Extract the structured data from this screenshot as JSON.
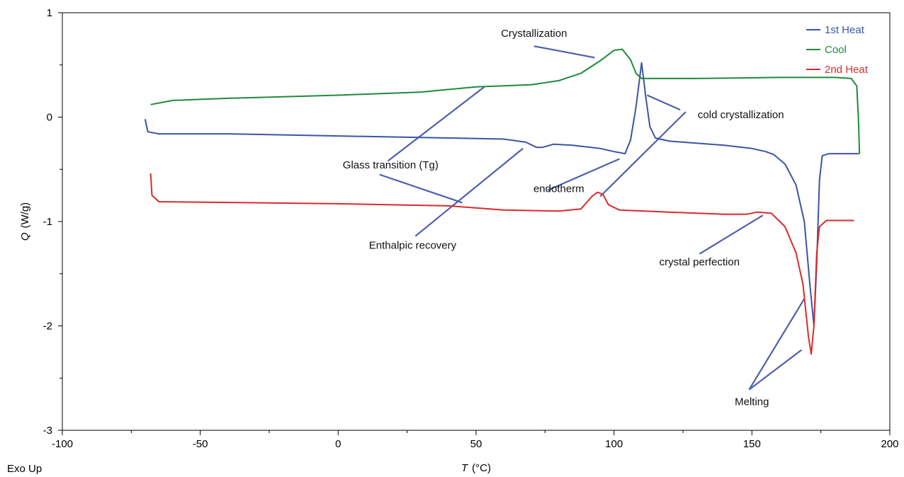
{
  "chart_data": {
    "type": "line",
    "xlabel_symbol": "T",
    "xlabel_unit": "(°C)",
    "ylabel_symbol": "Q",
    "ylabel_unit": "(W/g)",
    "xlim": [
      -100,
      200
    ],
    "ylim": [
      -3,
      1
    ],
    "x_ticks": [
      -100,
      -50,
      0,
      50,
      100,
      150,
      200
    ],
    "y_ticks": [
      -3,
      -2,
      -1,
      0,
      1
    ],
    "grid": false,
    "legend_position": "top-right",
    "corner_note": "Exo Up",
    "series": [
      {
        "name": "1st Heat",
        "color": "#3a55a4",
        "points": [
          [
            -70,
            -0.02
          ],
          [
            -69,
            -0.14
          ],
          [
            -65,
            -0.16
          ],
          [
            -40,
            -0.16
          ],
          [
            0,
            -0.18
          ],
          [
            40,
            -0.2
          ],
          [
            60,
            -0.21
          ],
          [
            68,
            -0.24
          ],
          [
            72,
            -0.29
          ],
          [
            74,
            -0.29
          ],
          [
            78,
            -0.26
          ],
          [
            85,
            -0.27
          ],
          [
            95,
            -0.3
          ],
          [
            100,
            -0.33
          ],
          [
            104,
            -0.35
          ],
          [
            106,
            -0.22
          ],
          [
            108,
            0.1
          ],
          [
            110,
            0.52
          ],
          [
            111.5,
            0.2
          ],
          [
            113,
            -0.09
          ],
          [
            115,
            -0.2
          ],
          [
            120,
            -0.23
          ],
          [
            140,
            -0.27
          ],
          [
            150,
            -0.3
          ],
          [
            155,
            -0.33
          ],
          [
            158,
            -0.36
          ],
          [
            162,
            -0.45
          ],
          [
            166,
            -0.65
          ],
          [
            169,
            -1.0
          ],
          [
            171,
            -1.6
          ],
          [
            172.5,
            -2.0
          ],
          [
            173.5,
            -1.4
          ],
          [
            174.5,
            -0.6
          ],
          [
            175.5,
            -0.37
          ],
          [
            178,
            -0.35
          ],
          [
            189,
            -0.35
          ]
        ]
      },
      {
        "name": "Cool",
        "color": "#1f8a3b",
        "points": [
          [
            -68,
            0.12
          ],
          [
            -60,
            0.16
          ],
          [
            -40,
            0.18
          ],
          [
            0,
            0.21
          ],
          [
            30,
            0.24
          ],
          [
            50,
            0.29
          ],
          [
            70,
            0.31
          ],
          [
            80,
            0.35
          ],
          [
            88,
            0.42
          ],
          [
            95,
            0.54
          ],
          [
            100,
            0.64
          ],
          [
            103,
            0.65
          ],
          [
            106,
            0.55
          ],
          [
            108,
            0.42
          ],
          [
            110,
            0.37
          ],
          [
            130,
            0.37
          ],
          [
            160,
            0.38
          ],
          [
            180,
            0.38
          ],
          [
            186,
            0.37
          ],
          [
            188,
            0.3
          ],
          [
            188.6,
            0.0
          ],
          [
            189,
            -0.35
          ]
        ]
      },
      {
        "name": "2nd Heat",
        "color": "#d92b2b",
        "points": [
          [
            -68,
            -0.54
          ],
          [
            -67.5,
            -0.75
          ],
          [
            -65,
            -0.81
          ],
          [
            0,
            -0.83
          ],
          [
            40,
            -0.85
          ],
          [
            60,
            -0.89
          ],
          [
            80,
            -0.9
          ],
          [
            88,
            -0.88
          ],
          [
            92,
            -0.76
          ],
          [
            94,
            -0.72
          ],
          [
            96,
            -0.74
          ],
          [
            98,
            -0.84
          ],
          [
            102,
            -0.89
          ],
          [
            120,
            -0.91
          ],
          [
            140,
            -0.93
          ],
          [
            148,
            -0.93
          ],
          [
            152,
            -0.91
          ],
          [
            157,
            -0.92
          ],
          [
            162,
            -1.05
          ],
          [
            166,
            -1.3
          ],
          [
            168.5,
            -1.6
          ],
          [
            170.5,
            -2.1
          ],
          [
            171.5,
            -2.27
          ],
          [
            172.5,
            -2.0
          ],
          [
            173.5,
            -1.3
          ],
          [
            174.5,
            -1.05
          ],
          [
            177,
            -0.99
          ],
          [
            187,
            -0.99
          ]
        ]
      }
    ],
    "annotations": [
      {
        "text": "Crystallization",
        "text_at": [
          71,
          0.77
        ],
        "anchor": "middle",
        "lines": [
          [
            [
              71,
              0.68
            ],
            [
              93,
              0.57
            ]
          ]
        ]
      },
      {
        "text": "cold crystallization",
        "text_at": [
          146,
          -0.01
        ],
        "anchor": "middle",
        "lines": [
          [
            [
              112,
              0.21
            ],
            [
              124,
              0.07
            ]
          ],
          [
            [
              126,
              0.05
            ],
            [
              95,
              -0.76
            ]
          ]
        ]
      },
      {
        "text": "Glass transition (Tg)",
        "text_at": [
          19,
          -0.49
        ],
        "anchor": "middle",
        "lines": [
          [
            [
              53,
              0.29
            ],
            [
              18,
              -0.42
            ]
          ],
          [
            [
              15,
              -0.55
            ],
            [
              45,
              -0.82
            ]
          ]
        ]
      },
      {
        "text": "endotherm",
        "text_at": [
          80,
          -0.72
        ],
        "anchor": "middle",
        "lines": [
          [
            [
              76,
              -0.7
            ],
            [
              102,
              -0.4
            ]
          ]
        ]
      },
      {
        "text": "Enthalpic recovery",
        "text_at": [
          27,
          -1.26
        ],
        "anchor": "middle",
        "lines": [
          [
            [
              28,
              -1.14
            ],
            [
              67,
              -0.3
            ]
          ]
        ]
      },
      {
        "text": "crystal perfection",
        "text_at": [
          131,
          -1.42
        ],
        "anchor": "middle",
        "lines": [
          [
            [
              131,
              -1.31
            ],
            [
              154,
              -0.94
            ]
          ]
        ]
      },
      {
        "text": "Melting",
        "text_at": [
          150,
          -2.76
        ],
        "anchor": "middle",
        "lines": [
          [
            [
              149,
              -2.61
            ],
            [
              169,
              -1.74
            ]
          ],
          [
            [
              149,
              -2.61
            ],
            [
              168,
              -2.23
            ]
          ]
        ]
      }
    ]
  }
}
